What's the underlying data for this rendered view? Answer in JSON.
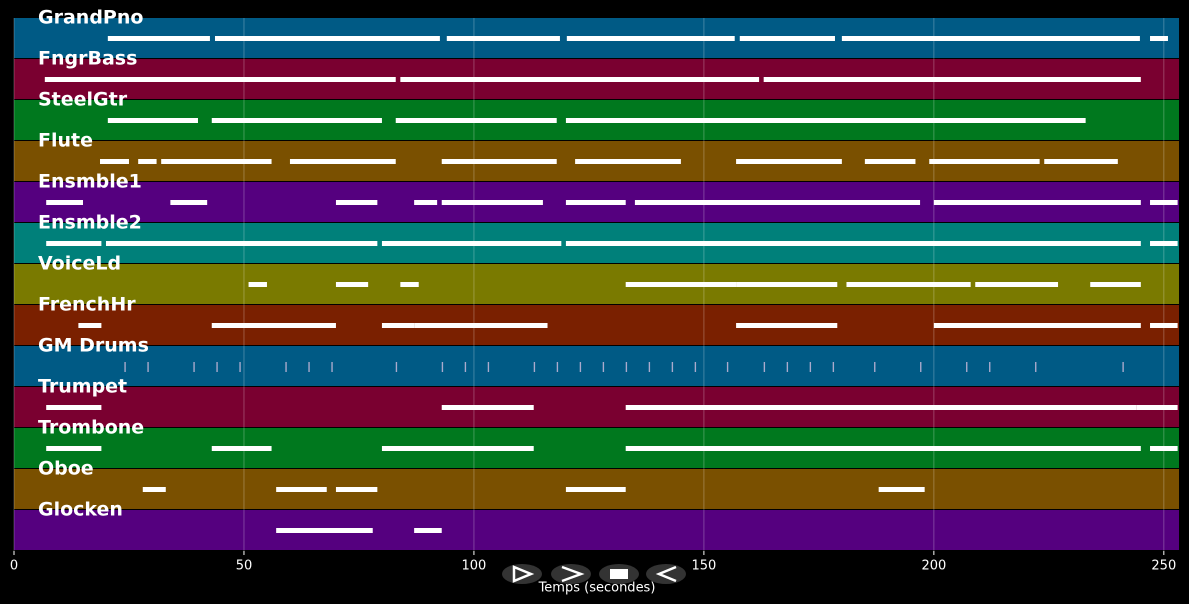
{
  "chart_data": {
    "type": "pianoroll",
    "xlabel": "Temps (secondes)",
    "xlim": [
      0,
      253.3
    ],
    "xticks": [
      0,
      50,
      100,
      150,
      200,
      250
    ],
    "grid": true,
    "tracks": [
      {
        "name": "GrandPno",
        "color": "#005a85",
        "notes": [
          [
            20.4,
            42.6
          ],
          [
            43.7,
            92.6
          ],
          [
            94.1,
            118.7
          ],
          [
            120.2,
            156.7
          ],
          [
            157.8,
            178.5
          ],
          [
            180,
            244.8
          ],
          [
            247,
            250.9
          ]
        ]
      },
      {
        "name": "FngrBass",
        "color": "#7a0030",
        "notes": [
          [
            6.7,
            83
          ],
          [
            84,
            162
          ],
          [
            163,
            245
          ]
        ]
      },
      {
        "name": "SteelGtr",
        "color": "#00781e",
        "notes": [
          [
            20.4,
            40
          ],
          [
            43,
            80
          ],
          [
            83,
            118
          ],
          [
            120,
            233
          ]
        ]
      },
      {
        "name": "Flute",
        "color": "#7a5000",
        "notes": [
          [
            18.7,
            25
          ],
          [
            27,
            31
          ],
          [
            32,
            56
          ],
          [
            60,
            83
          ],
          [
            93,
            118
          ],
          [
            122,
            145
          ],
          [
            157,
            180
          ],
          [
            185,
            196
          ],
          [
            199,
            223
          ],
          [
            224,
            240
          ]
        ]
      },
      {
        "name": "Ensmble1",
        "color": "#55007f",
        "notes": [
          [
            7,
            15
          ],
          [
            34,
            42
          ],
          [
            70,
            79
          ],
          [
            87,
            92
          ],
          [
            93,
            115
          ],
          [
            120,
            133
          ],
          [
            135,
            197
          ],
          [
            200,
            245
          ],
          [
            247,
            253
          ]
        ]
      },
      {
        "name": "Ensmble2",
        "color": "#00807a",
        "notes": [
          [
            7,
            19
          ],
          [
            20,
            79
          ],
          [
            80,
            119
          ],
          [
            120,
            245
          ],
          [
            247,
            253
          ]
        ]
      },
      {
        "name": "VoiceLd",
        "color": "#7a7a00",
        "notes": [
          [
            51,
            55
          ],
          [
            70,
            77
          ],
          [
            84,
            88
          ],
          [
            133,
            157
          ],
          [
            157,
            179
          ],
          [
            181,
            208
          ],
          [
            209,
            227
          ],
          [
            234,
            245
          ]
        ]
      },
      {
        "name": "FrenchHr",
        "color": "#7a2000",
        "notes": [
          [
            14,
            19
          ],
          [
            43,
            70
          ],
          [
            80,
            87
          ],
          [
            87,
            116
          ],
          [
            157,
            179
          ],
          [
            200,
            245
          ],
          [
            247,
            253
          ]
        ]
      },
      {
        "name": "GM Drums",
        "color": "#005a85",
        "notes": [
          [
            24,
            24.3
          ],
          [
            29,
            29.3
          ],
          [
            39,
            39.3
          ],
          [
            44,
            44.3
          ],
          [
            49,
            49.3
          ],
          [
            59,
            59.3
          ],
          [
            64,
            64.3
          ],
          [
            69,
            69.3
          ],
          [
            83,
            83.3
          ],
          [
            93,
            93.3
          ],
          [
            98,
            98.3
          ],
          [
            103,
            103.3
          ],
          [
            113,
            113.3
          ],
          [
            118,
            118.3
          ],
          [
            123,
            123.3
          ],
          [
            128,
            128.3
          ],
          [
            133,
            133.3
          ],
          [
            138,
            138.3
          ],
          [
            143,
            143.3
          ],
          [
            148,
            148.3
          ],
          [
            155,
            155.3
          ],
          [
            163,
            163.3
          ],
          [
            168,
            168.3
          ],
          [
            173,
            173.3
          ],
          [
            178,
            178.3
          ],
          [
            187,
            187.3
          ],
          [
            197,
            197.3
          ],
          [
            207,
            207.3
          ],
          [
            212,
            212.3
          ],
          [
            222,
            222.3
          ],
          [
            241,
            241.3
          ]
        ]
      },
      {
        "name": "Trumpet",
        "color": "#7a0030",
        "notes": [
          [
            7,
            19
          ],
          [
            93,
            113
          ],
          [
            133,
            244
          ],
          [
            244,
            253
          ]
        ]
      },
      {
        "name": "Trombone",
        "color": "#00781e",
        "notes": [
          [
            7,
            19
          ],
          [
            43,
            56
          ],
          [
            80,
            113
          ],
          [
            133,
            245
          ],
          [
            247,
            253
          ]
        ]
      },
      {
        "name": "Oboe",
        "color": "#7a5000",
        "notes": [
          [
            28,
            33
          ],
          [
            57,
            68
          ],
          [
            70,
            79
          ],
          [
            120,
            133
          ],
          [
            188,
            198
          ]
        ]
      },
      {
        "name": "Glocken",
        "color": "#55007f",
        "notes": [
          [
            57,
            78
          ],
          [
            87,
            93
          ]
        ]
      }
    ]
  }
}
